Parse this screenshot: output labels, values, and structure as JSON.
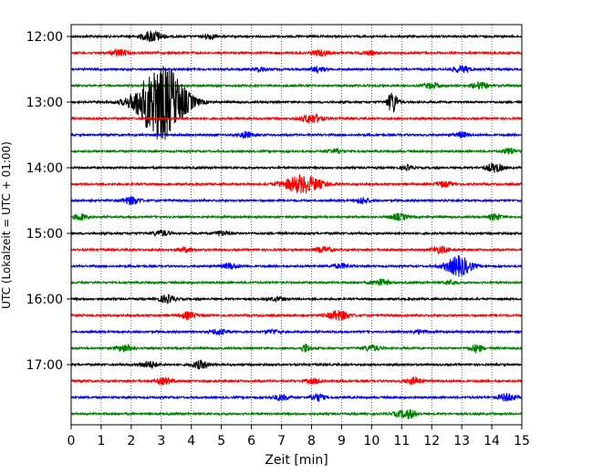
{
  "chart_data": {
    "type": "line",
    "title": "",
    "xlabel": "Zeit  [min]",
    "ylabel": "UTC (Lokalzeit = UTC + 01:00)",
    "xlim": [
      0,
      15
    ],
    "x_ticks": [
      "0",
      "1",
      "2",
      "3",
      "4",
      "5",
      "6",
      "7",
      "8",
      "9",
      "10",
      "11",
      "12",
      "13",
      "14",
      "15"
    ],
    "y_tick_labels": [
      "12:00",
      "13:00",
      "14:00",
      "15:00",
      "16:00",
      "17:00"
    ],
    "grid": "vertical dotted at every minute",
    "rows_per_hour": 4,
    "minutes_per_row": 15,
    "row_color_cycle": [
      "#000000",
      "#ff0000",
      "#0000ff",
      "#008000"
    ],
    "rows": [
      {
        "start": "12:00",
        "events": [
          [
            2.7,
            0.25,
            1.0
          ],
          [
            4.6,
            0.15,
            0.5
          ]
        ]
      },
      {
        "start": "12:15",
        "events": [
          [
            1.6,
            0.2,
            0.6
          ],
          [
            8.3,
            0.2,
            0.5
          ],
          [
            9.9,
            0.2,
            0.3
          ]
        ]
      },
      {
        "start": "12:30",
        "events": [
          [
            6.3,
            0.15,
            0.4
          ],
          [
            8.2,
            0.15,
            0.5
          ],
          [
            13.0,
            0.2,
            0.6
          ]
        ]
      },
      {
        "start": "12:45",
        "events": [
          [
            12.0,
            0.2,
            0.5
          ],
          [
            13.6,
            0.2,
            0.6
          ]
        ]
      },
      {
        "start": "13:00",
        "events": [
          [
            3.0,
            0.55,
            7.0
          ],
          [
            10.7,
            0.12,
            2.0
          ]
        ]
      },
      {
        "start": "13:15",
        "events": [
          [
            8.0,
            0.25,
            0.8
          ]
        ]
      },
      {
        "start": "13:30",
        "events": [
          [
            5.8,
            0.15,
            0.6
          ],
          [
            13.0,
            0.15,
            0.5
          ]
        ]
      },
      {
        "start": "13:45",
        "events": [
          [
            8.8,
            0.2,
            0.4
          ],
          [
            14.6,
            0.15,
            0.6
          ]
        ]
      },
      {
        "start": "14:00",
        "events": [
          [
            11.2,
            0.15,
            0.4
          ],
          [
            14.1,
            0.2,
            0.8
          ]
        ]
      },
      {
        "start": "14:15",
        "events": [
          [
            7.7,
            0.45,
            1.6
          ],
          [
            12.4,
            0.2,
            0.5
          ]
        ]
      },
      {
        "start": "14:30",
        "events": [
          [
            2.0,
            0.2,
            0.7
          ],
          [
            9.7,
            0.15,
            0.6
          ]
        ]
      },
      {
        "start": "14:45",
        "events": [
          [
            0.3,
            0.15,
            0.6
          ],
          [
            10.9,
            0.2,
            0.6
          ],
          [
            14.1,
            0.15,
            0.6
          ]
        ]
      },
      {
        "start": "15:00",
        "events": [
          [
            3.0,
            0.2,
            0.5
          ],
          [
            5.0,
            0.2,
            0.4
          ]
        ]
      },
      {
        "start": "15:15",
        "events": [
          [
            3.8,
            0.2,
            0.4
          ],
          [
            8.4,
            0.2,
            0.5
          ],
          [
            12.3,
            0.2,
            0.6
          ]
        ]
      },
      {
        "start": "15:30",
        "events": [
          [
            5.3,
            0.2,
            0.5
          ],
          [
            9.0,
            0.2,
            0.4
          ],
          [
            12.9,
            0.3,
            1.8
          ]
        ]
      },
      {
        "start": "15:45",
        "events": [
          [
            10.3,
            0.2,
            0.6
          ],
          [
            12.6,
            0.15,
            0.4
          ]
        ]
      },
      {
        "start": "16:00",
        "events": [
          [
            3.2,
            0.2,
            0.7
          ],
          [
            6.9,
            0.2,
            0.3
          ]
        ]
      },
      {
        "start": "16:15",
        "events": [
          [
            3.9,
            0.2,
            0.6
          ],
          [
            8.9,
            0.25,
            0.9
          ]
        ]
      },
      {
        "start": "16:30",
        "events": [
          [
            4.9,
            0.2,
            0.5
          ],
          [
            6.7,
            0.15,
            0.4
          ],
          [
            11.6,
            0.2,
            0.3
          ]
        ]
      },
      {
        "start": "16:45",
        "events": [
          [
            1.8,
            0.2,
            0.6
          ],
          [
            7.8,
            0.1,
            0.8
          ],
          [
            10.0,
            0.2,
            0.5
          ],
          [
            13.5,
            0.15,
            0.7
          ]
        ]
      },
      {
        "start": "17:00",
        "events": [
          [
            2.6,
            0.2,
            0.6
          ],
          [
            4.3,
            0.2,
            0.7
          ]
        ]
      },
      {
        "start": "17:15",
        "events": [
          [
            3.1,
            0.2,
            0.6
          ],
          [
            8.1,
            0.2,
            0.4
          ],
          [
            11.4,
            0.2,
            0.6
          ]
        ]
      },
      {
        "start": "17:30",
        "events": [
          [
            7.0,
            0.2,
            0.5
          ],
          [
            8.2,
            0.15,
            0.7
          ],
          [
            14.5,
            0.2,
            0.7
          ]
        ]
      },
      {
        "start": "17:45",
        "events": [
          [
            11.0,
            0.2,
            0.5
          ],
          [
            11.3,
            0.15,
            0.6
          ]
        ]
      }
    ]
  }
}
